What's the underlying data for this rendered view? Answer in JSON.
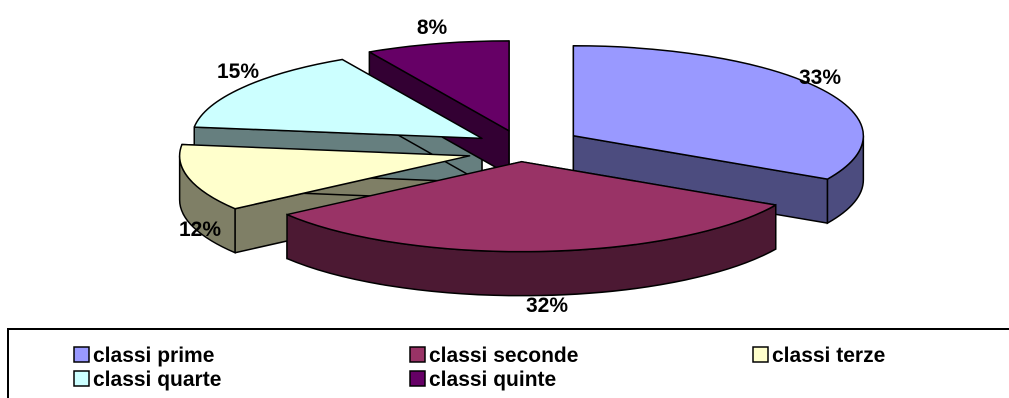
{
  "chart_data": {
    "type": "pie",
    "style": "3d-exploded",
    "slices": [
      {
        "label": "classi prime",
        "value": 33,
        "data_label": "33%",
        "top_color": "#9999FF",
        "side_color": "#4C4C7F"
      },
      {
        "label": "classi seconde",
        "value": 32,
        "data_label": "32%",
        "top_color": "#993366",
        "side_color": "#4C1933"
      },
      {
        "label": "classi terze",
        "value": 12,
        "data_label": "12%",
        "top_color": "#FFFFCC",
        "side_color": "#7F7F66"
      },
      {
        "label": "classi quarte",
        "value": 15,
        "data_label": "15%",
        "top_color": "#CCFFFF",
        "side_color": "#667F7F"
      },
      {
        "label": "classi quinte",
        "value": 8,
        "data_label": "8%",
        "top_color": "#660066",
        "side_color": "#330033"
      }
    ],
    "legend_position": "bottom",
    "title": ""
  }
}
